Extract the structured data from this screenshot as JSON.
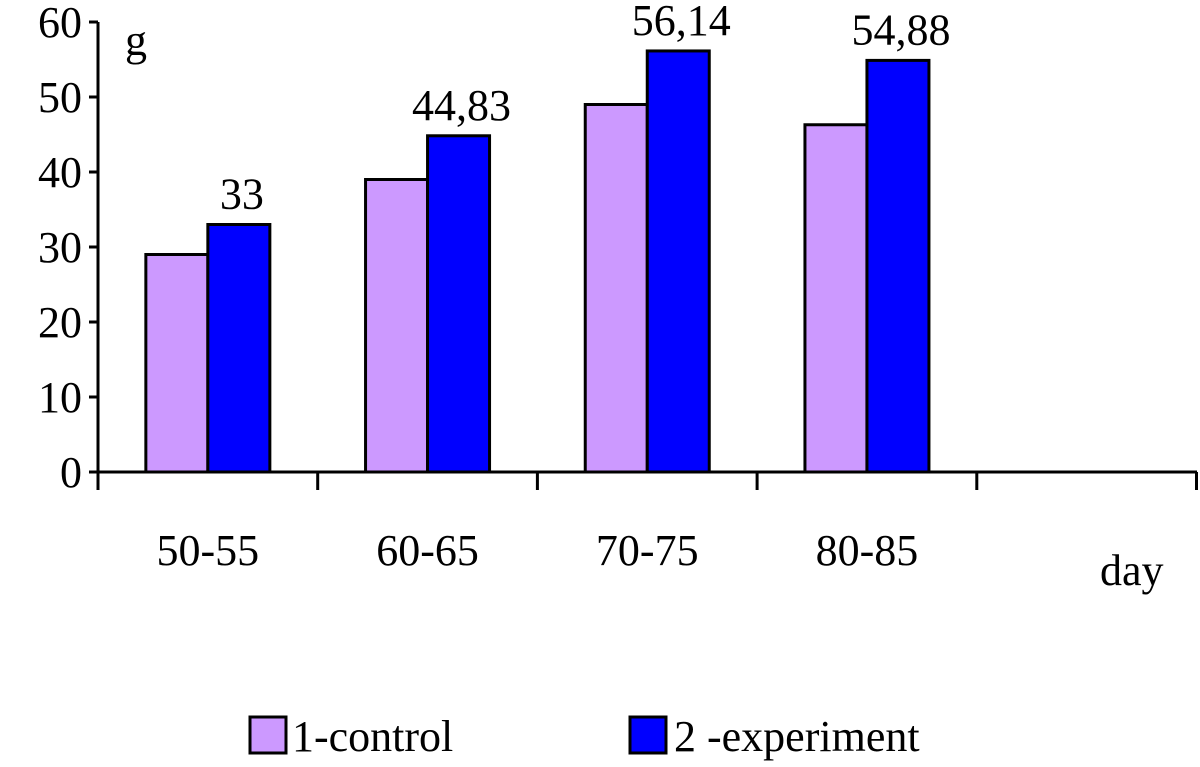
{
  "chart_data": {
    "type": "bar",
    "ylabel": "g",
    "xlabel": "day",
    "categories": [
      "50-55",
      "60-65",
      "70-75",
      "80-85"
    ],
    "series": [
      {
        "name": "1-control",
        "color": "#cc99ff",
        "values": [
          29,
          39,
          49,
          46.3
        ]
      },
      {
        "name": "2 -experiment",
        "color": "#0000ff",
        "values": [
          33,
          44.83,
          56.14,
          54.88
        ]
      }
    ],
    "data_labels": [
      "33",
      "44,83",
      "56,14",
      "54,88"
    ],
    "ylim": [
      0,
      60
    ],
    "yticks": [
      0,
      10,
      20,
      30,
      40,
      50,
      60
    ],
    "grid": false,
    "legend_position": "bottom"
  }
}
